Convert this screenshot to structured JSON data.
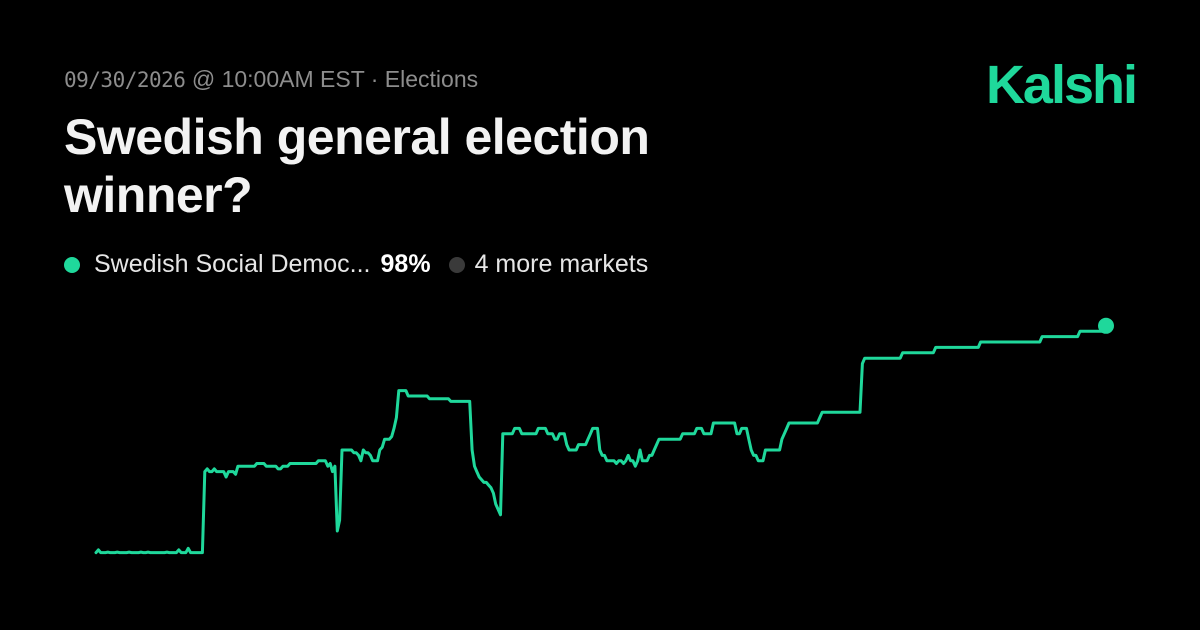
{
  "header": {
    "date": "09/30/2026",
    "time": "@ 10:00AM EST",
    "separator": "·",
    "category": "Elections",
    "brand": "Kalshi",
    "title": "Swedish general election winner?"
  },
  "legend": {
    "leader_label": "Swedish Social Democ...",
    "leader_value": "98%",
    "more_label": "4 more markets"
  },
  "colors": {
    "accent": "#1fd89b",
    "muted_dot": "#3a3a3a",
    "background": "#000000",
    "meta_text": "#8d8d8d"
  },
  "chart_data": {
    "type": "line",
    "title": "",
    "xlabel": "",
    "ylabel": "",
    "ylim": [
      0,
      100
    ],
    "grid": false,
    "series": [
      {
        "name": "Swedish Social Democ...",
        "values": [
          56,
          56.5,
          56,
          56,
          56,
          56.1,
          56,
          56,
          56,
          56.1,
          56,
          56,
          56,
          56,
          56.1,
          56,
          56,
          56,
          56,
          56.1,
          56,
          56,
          56.1,
          56,
          56,
          56,
          56,
          56,
          56,
          56,
          56.1,
          56,
          56,
          56,
          56,
          56.5,
          56,
          56,
          56,
          56.8,
          56,
          56,
          56,
          56,
          56,
          56,
          71,
          71.5,
          71,
          71,
          71.5,
          71,
          71,
          71,
          71,
          70,
          71,
          71,
          71,
          70.5,
          72,
          72,
          72,
          72,
          72,
          72,
          72,
          72,
          72.5,
          72.5,
          72.5,
          72.5,
          72,
          72,
          72,
          72,
          72,
          71.5,
          71.5,
          72,
          72,
          72,
          72.5,
          72.5,
          72.5,
          72.5,
          72.5,
          72.5,
          72.5,
          72.5,
          72.5,
          72.5,
          72.5,
          72.5,
          73,
          73,
          73,
          73,
          72,
          72.5,
          71,
          72,
          60,
          62,
          75,
          75,
          75,
          75,
          75,
          74.5,
          74.5,
          74,
          73,
          75,
          74.5,
          74.5,
          74,
          73,
          73,
          73,
          75,
          75.5,
          77,
          77,
          77,
          77.5,
          79,
          81,
          86,
          86,
          86,
          86,
          85,
          85,
          85,
          85,
          85,
          85,
          85,
          85,
          85,
          84.5,
          84.5,
          84.5,
          84.5,
          84.5,
          84.5,
          84.5,
          84.5,
          84.5,
          84,
          84,
          84,
          84,
          84,
          84,
          84,
          84,
          84,
          75,
          72,
          71,
          70,
          69.5,
          69,
          69,
          68.5,
          68,
          67,
          65,
          64,
          63,
          78,
          78,
          78,
          78,
          78,
          79,
          79,
          79,
          78,
          78,
          78,
          78,
          78,
          78,
          78,
          79,
          79,
          79,
          79,
          78,
          78,
          78,
          77,
          77,
          78,
          78,
          78,
          76,
          75,
          75,
          75,
          75,
          76,
          76,
          76,
          76,
          77,
          78,
          79,
          79,
          79,
          75,
          74,
          74,
          73,
          73,
          73,
          73,
          72.5,
          73,
          73,
          72.5,
          73,
          74,
          73,
          73,
          72,
          73,
          75,
          73,
          73,
          73,
          74,
          74,
          75,
          76,
          77,
          77,
          77,
          77,
          77,
          77,
          77,
          77,
          77,
          77,
          78,
          78,
          78,
          78,
          78,
          78,
          79,
          79,
          79,
          78,
          78,
          78,
          78,
          80,
          80,
          80,
          80,
          80,
          80,
          80,
          80,
          80,
          80,
          78,
          78,
          79,
          79,
          79,
          77,
          75,
          74,
          74,
          73,
          73,
          73,
          75,
          75,
          75,
          75,
          75,
          75,
          75,
          77,
          78,
          79,
          80,
          80,
          80,
          80,
          80,
          80,
          80,
          80,
          80,
          80,
          80,
          80,
          80,
          81,
          82,
          82,
          82,
          82,
          82,
          82,
          82,
          82,
          82,
          82,
          82,
          82,
          82,
          82,
          82,
          82,
          82,
          91,
          92,
          92,
          92,
          92,
          92,
          92,
          92,
          92,
          92,
          92,
          92,
          92,
          92,
          92,
          92,
          92,
          93,
          93,
          93,
          93,
          93,
          93,
          93,
          93,
          93,
          93,
          93,
          93,
          93,
          93,
          94,
          94,
          94,
          94,
          94,
          94,
          94,
          94,
          94,
          94,
          94,
          94,
          94,
          94,
          94,
          94,
          94,
          94,
          94,
          95,
          95,
          95,
          95,
          95,
          95,
          95,
          95,
          95,
          95,
          95,
          95,
          95,
          95,
          95,
          95,
          95,
          95,
          95,
          95,
          95,
          95,
          95,
          95,
          95,
          95,
          96,
          96,
          96,
          96,
          96,
          96,
          96,
          96,
          96,
          96,
          96,
          96,
          96,
          96,
          96,
          96,
          97,
          97,
          97,
          97,
          97,
          97,
          97,
          97,
          97,
          97,
          97,
          98
        ]
      }
    ]
  }
}
